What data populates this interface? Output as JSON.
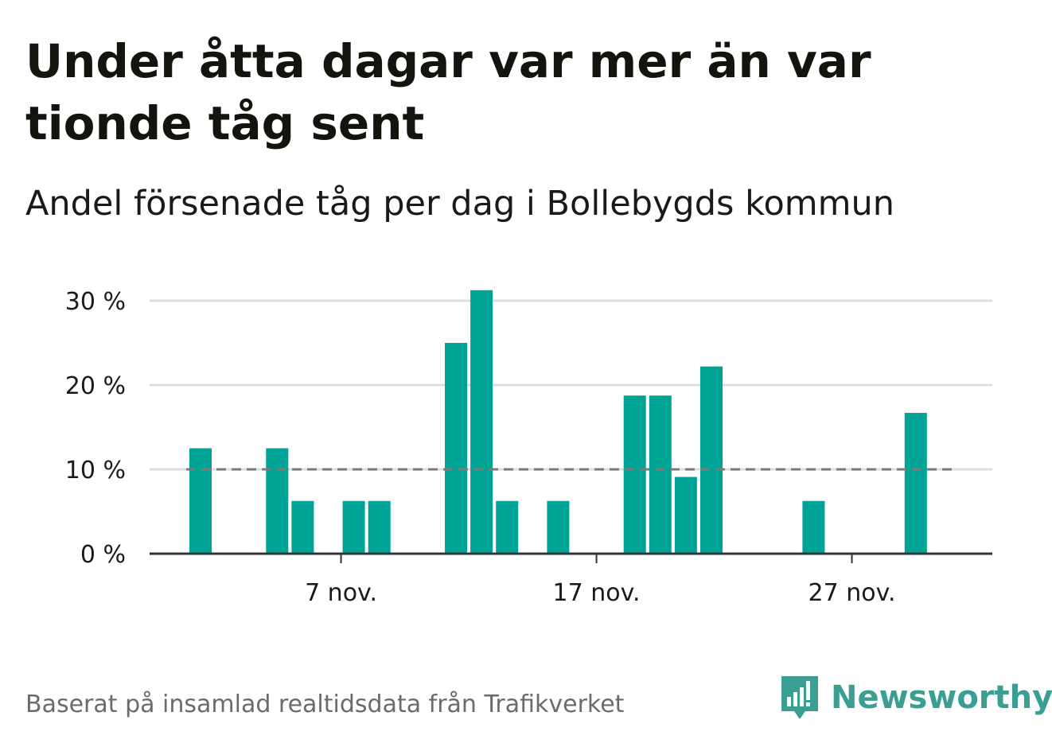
{
  "title": "Under åtta dagar var mer än var tionde tåg sent",
  "subtitle": "Andel försenade tåg per dag i Bollebygds kommun",
  "source": "Baserat på insamlad realtidsdata från Trafikverket",
  "brand": "Newsworthy",
  "colors": {
    "bar": "#00a497",
    "reference": "#7a7a7a",
    "grid": "#dddddd",
    "axis": "#333333",
    "brand": "#3a9e92"
  },
  "chart_data": {
    "type": "bar",
    "x": [
      1,
      2,
      3,
      4,
      5,
      6,
      7,
      8,
      9,
      10,
      11,
      12,
      13,
      14,
      15,
      16,
      17,
      18,
      19,
      20,
      21,
      22,
      23,
      24,
      25,
      26,
      27,
      28,
      29,
      30
    ],
    "values": [
      12.5,
      0,
      0,
      12.5,
      6.25,
      0,
      6.25,
      6.25,
      0,
      0,
      25,
      31.25,
      6.25,
      0,
      6.25,
      0,
      0,
      18.75,
      18.75,
      9.1,
      22.2,
      0,
      0,
      0,
      6.25,
      0,
      0,
      0,
      16.7,
      0
    ],
    "x_unit": "nov.",
    "x_ticks": [
      {
        "x": 7,
        "label": "7 nov."
      },
      {
        "x": 17,
        "label": "17 nov."
      },
      {
        "x": 27,
        "label": "27 nov."
      }
    ],
    "y_ticks": [
      {
        "value": 0,
        "label": "0 %"
      },
      {
        "value": 10,
        "label": "10 %"
      },
      {
        "value": 20,
        "label": "20 %"
      },
      {
        "value": 30,
        "label": "30 %"
      }
    ],
    "reference_line": 10,
    "ylim": [
      0,
      30
    ],
    "grid": true,
    "xlabel": "",
    "ylabel": ""
  }
}
